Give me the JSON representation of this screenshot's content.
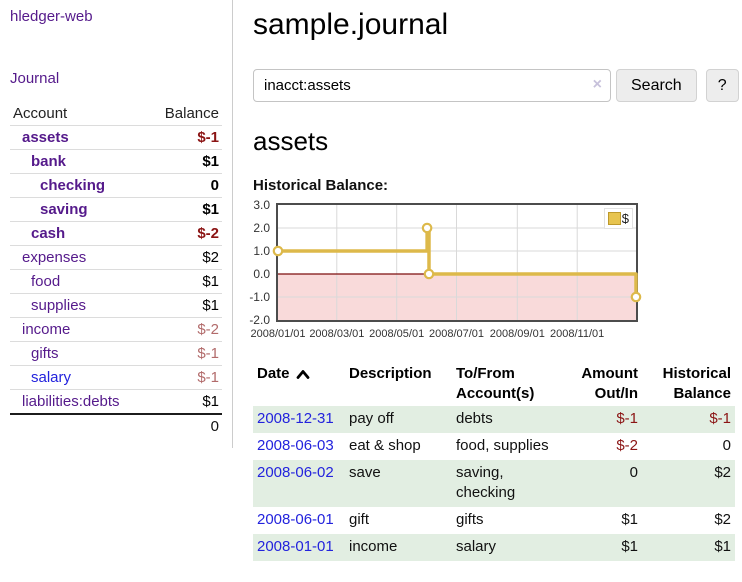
{
  "sidebar": {
    "app_title": "hledger-web",
    "journal_label": "Journal",
    "accounts_table": {
      "headers": {
        "account": "Account",
        "balance": "Balance"
      },
      "rows": [
        {
          "name": "assets",
          "balance": "$-1",
          "indent": 1,
          "bold": true,
          "balance_style": "neg-strong"
        },
        {
          "name": "bank",
          "balance": "$1",
          "indent": 2,
          "bold": true,
          "balance_style": "pos-strong"
        },
        {
          "name": "checking",
          "balance": "0",
          "indent": 3,
          "bold": true,
          "balance_style": "pos-strong"
        },
        {
          "name": "saving",
          "balance": "$1",
          "indent": 3,
          "bold": true,
          "balance_style": "pos-strong"
        },
        {
          "name": "cash",
          "balance": "$-2",
          "indent": 2,
          "bold": true,
          "balance_style": "neg-strong"
        },
        {
          "name": "expenses",
          "balance": "$2",
          "indent": 1,
          "bold": false,
          "balance_style": "pos"
        },
        {
          "name": "food",
          "balance": "$1",
          "indent": 2,
          "bold": false,
          "balance_style": "pos"
        },
        {
          "name": "supplies",
          "balance": "$1",
          "indent": 2,
          "bold": false,
          "balance_style": "pos"
        },
        {
          "name": "income",
          "balance": "$-2",
          "indent": 1,
          "bold": false,
          "balance_style": "neg-muted"
        },
        {
          "name": "gifts",
          "balance": "$-1",
          "indent": 2,
          "bold": false,
          "balance_style": "neg-muted"
        },
        {
          "name": "salary",
          "balance": "$-1",
          "indent": 2,
          "bold": false,
          "balance_style": "neg-muted",
          "link_color": "blue"
        },
        {
          "name": "liabilities:debts",
          "balance": "$1",
          "indent": 1,
          "bold": false,
          "balance_style": "pos"
        }
      ],
      "total": "0"
    }
  },
  "main": {
    "title": "sample.journal",
    "search": {
      "value": "inacct:assets",
      "clear_icon": "×",
      "search_button": "Search",
      "help_button": "?"
    },
    "account_heading": "assets",
    "chart_heading": "Historical Balance:"
  },
  "chart_data": {
    "type": "line",
    "step": true,
    "title": "Historical Balance:",
    "series": [
      {
        "name": "$",
        "points": [
          {
            "date": "2008-01-01",
            "value": 1
          },
          {
            "date": "2008-06-01",
            "value": 2
          },
          {
            "date": "2008-06-03",
            "value": 0
          },
          {
            "date": "2008-12-31",
            "value": -1
          }
        ]
      }
    ],
    "x_range": [
      "2008-01-01",
      "2008-12-31"
    ],
    "x_ticks": [
      "2008/01/01",
      "2008/03/01",
      "2008/05/01",
      "2008/07/01",
      "2008/09/01",
      "2008/11/01"
    ],
    "y_ticks": [
      "3.0",
      "2.0",
      "1.0",
      "0.0",
      "-1.0",
      "-2.0"
    ],
    "ylim": [
      -2,
      3
    ],
    "grid": true,
    "negative_region_shaded": true,
    "legend": {
      "label": "$",
      "position": "top-right"
    }
  },
  "register_table": {
    "sort_icon": "chevron-up",
    "headers": [
      {
        "line1": "Date",
        "sorted": "asc",
        "align": "left"
      },
      {
        "line1": "Description",
        "align": "left"
      },
      {
        "line1": "To/From",
        "line2": "Account(s)",
        "align": "left"
      },
      {
        "line1": "Amount",
        "line2": "Out/In",
        "align": "right"
      },
      {
        "line1": "Historical",
        "line2": "Balance",
        "align": "right"
      }
    ],
    "rows": [
      {
        "date": "2008-12-31",
        "description": "pay off",
        "accounts": [
          "debts"
        ],
        "amount": "$-1",
        "amount_negative": true,
        "balance": "$-1",
        "balance_negative": true
      },
      {
        "date": "2008-06-03",
        "description": "eat & shop",
        "accounts": [
          "food, supplies"
        ],
        "amount": "$-2",
        "amount_negative": true,
        "balance": "0",
        "balance_negative": false
      },
      {
        "date": "2008-06-02",
        "description": "save",
        "accounts": [
          "saving,",
          "checking"
        ],
        "amount": "0",
        "amount_negative": false,
        "balance": "$2",
        "balance_negative": false
      },
      {
        "date": "2008-06-01",
        "description": "gift",
        "accounts": [
          "gifts"
        ],
        "amount": "$1",
        "amount_negative": false,
        "balance": "$2",
        "balance_negative": false
      },
      {
        "date": "2008-01-01",
        "description": "income",
        "accounts": [
          "salary"
        ],
        "amount": "$1",
        "amount_negative": false,
        "balance": "$1",
        "balance_negative": false
      }
    ]
  },
  "colors": {
    "link_purple": "#551a8b",
    "link_blue": "#2323dd",
    "negative_strong": "#8b1414",
    "negative_muted": "#b26b6b",
    "row_green": "#e2eee2",
    "chart_line": "#ddb94a",
    "chart_marker_fill": "#ffffff",
    "chart_negative_bg": "#f9dada",
    "chart_zero_line": "#7d0f0f",
    "grid": "#d9d9d9",
    "chart_border": "#4c4c4c",
    "legend_square": "#e7c44f",
    "legend_square_border": "#bd992c",
    "button_bg": "#ededed",
    "sidebar_divider": "#cccccc"
  }
}
